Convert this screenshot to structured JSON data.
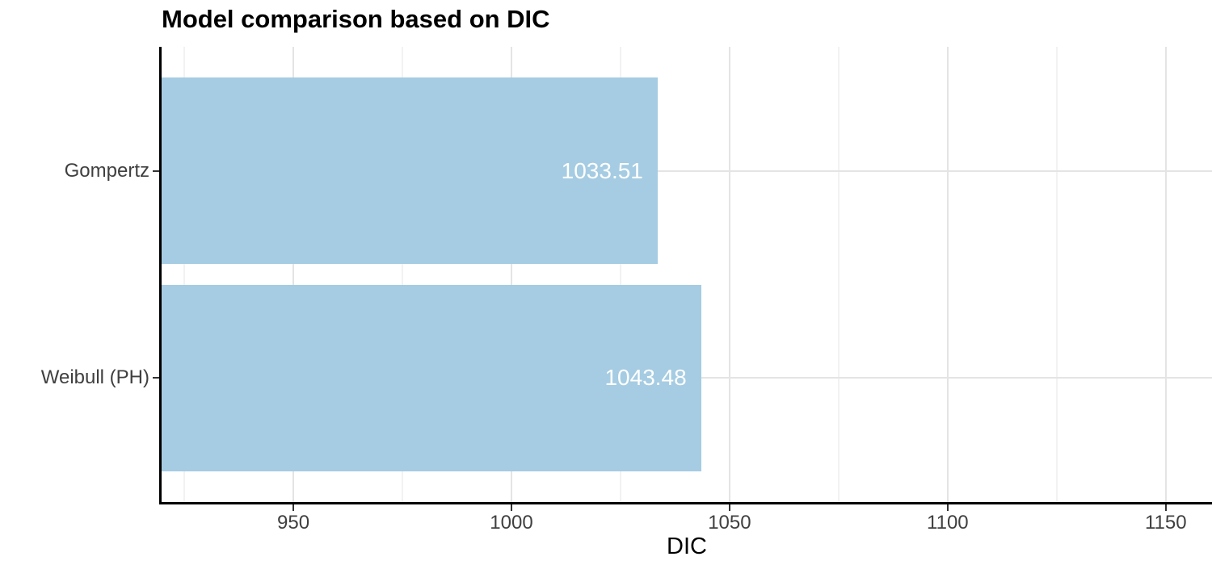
{
  "chart_data": {
    "type": "bar",
    "orientation": "horizontal",
    "title": "Model comparison based on DIC",
    "xlabel": "DIC",
    "ylabel": "",
    "categories": [
      "Gompertz",
      "Weibull (PH)"
    ],
    "values": [
      1033.51,
      1043.48
    ],
    "value_labels": [
      "1033.51",
      "1043.48"
    ],
    "x_major_ticks": [
      950,
      1000,
      1050,
      1100,
      1150
    ],
    "x_minor_ticks": [
      925,
      975,
      1025,
      1075,
      1125
    ],
    "xlim": [
      919.8,
      1160.6
    ],
    "grid": {
      "show": true,
      "major_color": "#e4e4e4",
      "minor_color": "#f2f2f2"
    },
    "legend": false,
    "colors": {
      "bar_fill": "#a5cce2",
      "value_label": "#ffffff",
      "axis_line": "#000000",
      "axis_text": "#404040",
      "title_text": "#000000"
    }
  }
}
